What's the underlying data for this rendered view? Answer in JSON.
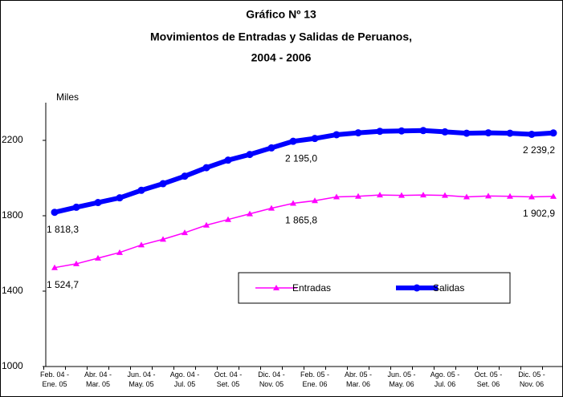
{
  "chart_data": {
    "type": "line",
    "title": "Gráfico Nº  13",
    "subtitle": "Movimientos de Entradas y Salidas de Peruanos,",
    "subtitle2": "2004 - 2006",
    "ylabel": "Miles",
    "categories": [
      "Feb. 04 -\nEne. 05",
      null,
      "Abr. 04 -\nMar. 05",
      null,
      "Jun. 04 -\nMay. 05",
      null,
      "Ago. 04 -\nJul. 05",
      null,
      "Oct. 04 -\nSet. 05",
      null,
      "Dic. 04 -\nNov. 05",
      null,
      "Feb. 05 -\nEne. 06",
      null,
      "Abr. 05 -\nMar. 06",
      null,
      "Jun. 05 -\nMay. 06",
      null,
      "Ago. 05 -\nJul. 06",
      null,
      "Oct. 05 -\nSet. 06",
      null,
      "Dic. 05 -\nNov. 06",
      null
    ],
    "series": [
      {
        "name": "Entradas",
        "color": "#ff00ff",
        "marker": "triangle",
        "width": 1.5,
        "values": [
          1524.7,
          1545,
          1575,
          1605,
          1645,
          1675,
          1710,
          1750,
          1780,
          1810,
          1840,
          1865.8,
          1880,
          1900,
          1903,
          1910,
          1908,
          1910,
          1908,
          1900,
          1905,
          1903,
          1900,
          1902.9
        ],
        "value_labels": [
          "1 524,7",
          null,
          null,
          null,
          null,
          null,
          null,
          null,
          null,
          null,
          null,
          "1 865,8",
          null,
          null,
          null,
          null,
          null,
          null,
          null,
          null,
          null,
          null,
          null,
          "1 902,9"
        ]
      },
      {
        "name": "Salidas",
        "color": "#0000ff",
        "marker": "circle",
        "width": 6,
        "values": [
          1818.3,
          1845,
          1870,
          1895,
          1935,
          1970,
          2010,
          2055,
          2095,
          2125,
          2160,
          2195.0,
          2210,
          2230,
          2240,
          2248,
          2250,
          2252,
          2245,
          2238,
          2240,
          2238,
          2232,
          2239.2
        ],
        "value_labels": [
          "1 818,3",
          null,
          null,
          null,
          null,
          null,
          null,
          null,
          null,
          null,
          null,
          "2 195,0",
          null,
          null,
          null,
          null,
          null,
          null,
          null,
          null,
          null,
          null,
          null,
          "2 239,2"
        ]
      }
    ],
    "ylim": [
      1000,
      2400
    ],
    "yticks": [
      1000,
      1400,
      1800,
      2200
    ],
    "grid": false,
    "legend": "bottom-right"
  }
}
